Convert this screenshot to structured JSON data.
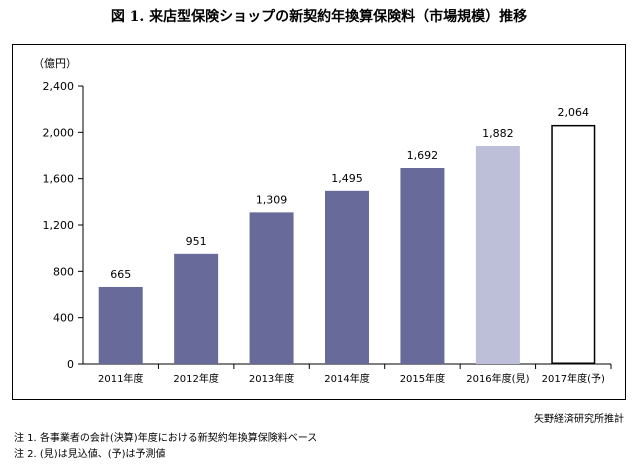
{
  "title": "図 1.  来店型保険ショップの新契約年換算保険料（市場規模）推移",
  "source": "矢野経済研究所推計",
  "notes": [
    "注 1.  各事業者の会計(決算)年度における新契約年換算保険料ベース",
    "注 2.  (見)は見込値、(予)は予測値"
  ],
  "colors": {
    "actual": "#686a99",
    "estimate": "#bdbed8",
    "forecast_fill": "#ffffff",
    "forecast_stroke": "#000000",
    "axis": "#000000"
  },
  "chart_data": {
    "type": "bar",
    "unit_label": "（億円）",
    "categories": [
      "2011年度",
      "2012年度",
      "2013年度",
      "2014年度",
      "2015年度",
      "2016年度(見)",
      "2017年度(予)"
    ],
    "values": [
      665,
      951,
      1309,
      1495,
      1692,
      1882,
      2064
    ],
    "value_labels": [
      "665",
      "951",
      "1,309",
      "1,495",
      "1,692",
      "1,882",
      "2,064"
    ],
    "bar_styles": [
      "actual",
      "actual",
      "actual",
      "actual",
      "actual",
      "estimate",
      "forecast"
    ],
    "yticks": [
      0,
      400,
      800,
      1200,
      1600,
      2000,
      2400
    ],
    "ytick_labels": [
      "0",
      "400",
      "800",
      "1,200",
      "1,600",
      "2,000",
      "2,400"
    ],
    "ylim": [
      0,
      2400
    ],
    "grid": false,
    "legend": "none"
  }
}
